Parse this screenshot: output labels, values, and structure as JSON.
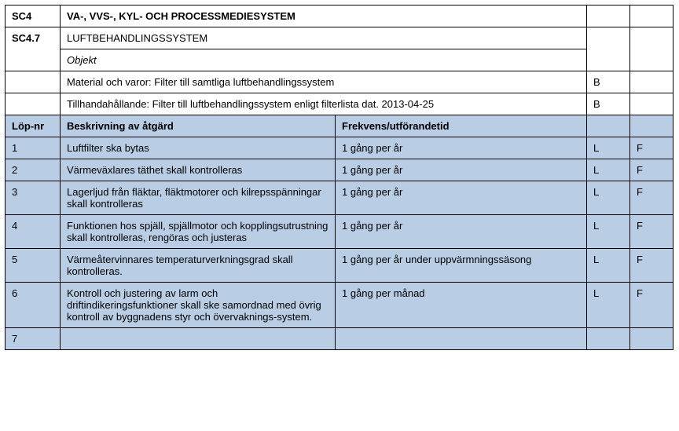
{
  "section": {
    "code": "SC4",
    "title": "VA-, VVS-, KYL- OCH PROCESSMEDIESYSTEM",
    "subcode": "SC4.7",
    "subtitle": "LUFTBEHANDLINGSSYSTEM",
    "objekt_label": "Objekt"
  },
  "material_line": {
    "text": "Material och varor: Filter till samtliga luftbehandlingssystem",
    "mark": "B"
  },
  "supply_line": {
    "text": "Tillhandahållande:  Filter till luftbehandlingssystem enligt filterlista dat. 2013-04-25",
    "mark": "B"
  },
  "columns": {
    "lopnr": "Löp-nr",
    "beskrivning": "Beskrivning av åtgärd",
    "frekvens": "Frekvens/utförandetid"
  },
  "rows": [
    {
      "n": "1",
      "desc": "Luftfilter ska bytas",
      "freq": "1 gång per år",
      "c1": "L",
      "c2": "F"
    },
    {
      "n": "2",
      "desc": "Värmeväxlares täthet skall kontrolleras",
      "freq": "1 gång per år",
      "c1": "L",
      "c2": "F"
    },
    {
      "n": "3",
      "desc": "Lagerljud från fläktar, fläktmotorer och kilrepsspänningar skall kontrolleras",
      "freq": "1 gång per år",
      "c1": "L",
      "c2": "F"
    },
    {
      "n": "4",
      "desc": "Funktionen hos spjäll, spjällmotor och kopplingsutrustning skall kontrolleras, rengöras och justeras",
      "freq": "1 gång per år",
      "c1": "L",
      "c2": "F"
    },
    {
      "n": "5",
      "desc": "Värmeåtervinnares temperaturverkningsgrad skall kontrolleras.",
      "freq": "1 gång per år under uppvärmningssäsong",
      "c1": "L",
      "c2": "F"
    },
    {
      "n": "6",
      "desc": "Kontroll och justering av larm och driftindikeringsfunktioner skall ske samordnad med övrig kontroll av byggnadens styr och övervaknings-system.",
      "freq": "1 gång per månad",
      "c1": "L",
      "c2": "F"
    },
    {
      "n": "7",
      "desc": "",
      "freq": "",
      "c1": "",
      "c2": ""
    }
  ],
  "colors": {
    "shaded": "#b9cde5",
    "border": "#000000",
    "background": "#ffffff"
  }
}
